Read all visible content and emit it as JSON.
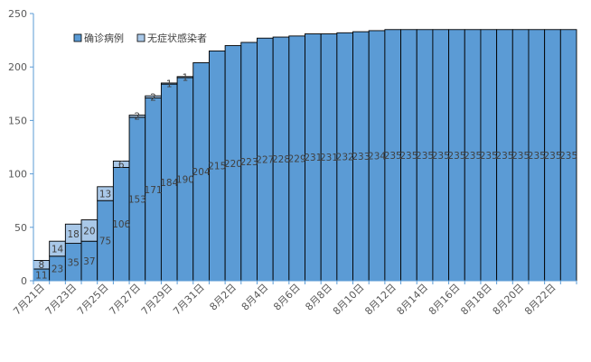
{
  "chart_data": {
    "type": "bar",
    "stacked": true,
    "title": "",
    "xlabel": "",
    "ylabel": "",
    "ylim": [
      0,
      250
    ],
    "yticks": [
      0,
      50,
      100,
      150,
      200,
      250
    ],
    "grid": false,
    "legend_position": "top-left",
    "categories": [
      "7月21日",
      "7月22日",
      "7月23日",
      "7月24日",
      "7月25日",
      "7月26日",
      "7月27日",
      "7月28日",
      "7月29日",
      "7月30日",
      "7月31日",
      "8月1日",
      "8月2日",
      "8月3日",
      "8月4日",
      "8月5日",
      "8月6日",
      "8月7日",
      "8月8日",
      "8月9日",
      "8月10日",
      "8月11日",
      "8月12日",
      "8月13日",
      "8月14日",
      "8月15日",
      "8月16日",
      "8月17日",
      "8月18日",
      "8月19日",
      "8月20日",
      "8月21日",
      "8月22日",
      "8月23日"
    ],
    "tick_labels": [
      "7月21日",
      "",
      "7月23日",
      "",
      "7月25日",
      "",
      "7月27日",
      "",
      "7月29日",
      "",
      "7月31日",
      "",
      "8月2日",
      "",
      "8月4日",
      "",
      "8月6日",
      "",
      "8月8日",
      "",
      "8月10日",
      "",
      "8月12日",
      "",
      "8月14日",
      "",
      "8月16日",
      "",
      "8月18日",
      "",
      "8月20日",
      "",
      "8月22日",
      ""
    ],
    "series": [
      {
        "name": "确诊病例",
        "color": "#5B9BD5",
        "values": [
          11,
          23,
          35,
          37,
          75,
          106,
          153,
          171,
          184,
          190,
          204,
          215,
          220,
          223,
          227,
          228,
          229,
          231,
          231,
          232,
          233,
          234,
          235,
          235,
          235,
          235,
          235,
          235,
          235,
          235,
          235,
          235,
          235,
          235
        ]
      },
      {
        "name": "无症状感染者",
        "color": "#A9C8E8",
        "values": [
          8,
          14,
          18,
          20,
          13,
          6,
          2,
          2,
          1,
          1,
          0,
          0,
          0,
          0,
          0,
          0,
          0,
          0,
          0,
          0,
          0,
          0,
          0,
          0,
          0,
          0,
          0,
          0,
          0,
          0,
          0,
          0,
          0,
          0
        ]
      }
    ]
  }
}
